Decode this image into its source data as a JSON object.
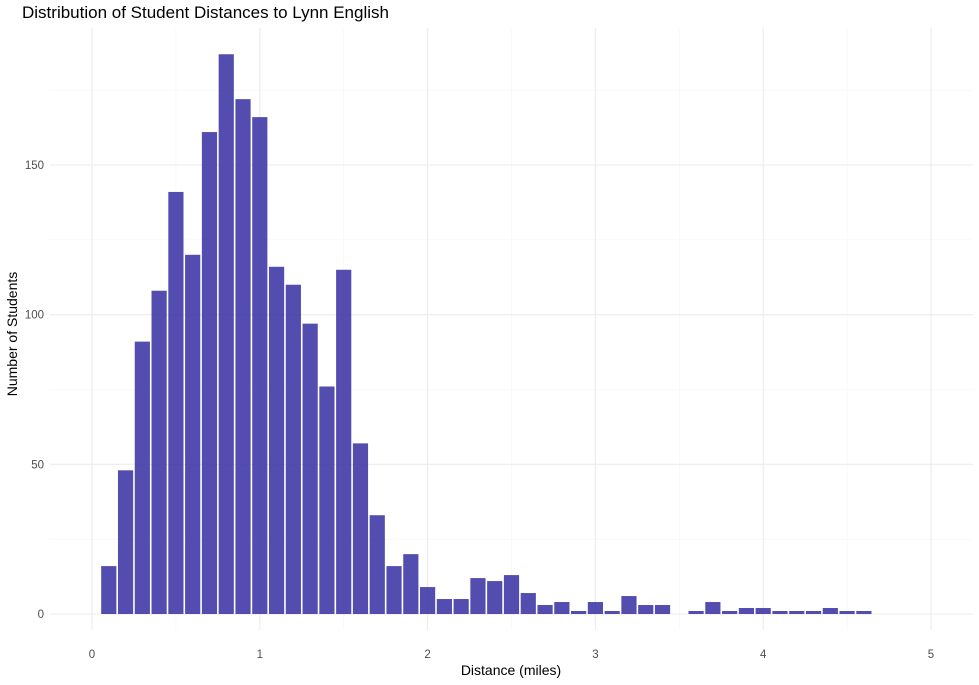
{
  "chart_data": {
    "type": "bar",
    "title": "Distribution of Student Distances to Lynn English",
    "xlabel": "Distance (miles)",
    "ylabel": "Number of Students",
    "xlim": [
      0,
      5
    ],
    "ylim": [
      0,
      190
    ],
    "xticks": [
      "0",
      "1",
      "2",
      "3",
      "4",
      "5"
    ],
    "yticks": [
      "0",
      "50",
      "100",
      "150"
    ],
    "grid": true,
    "bar_color": "#3f3aa6",
    "bin_width": 0.1,
    "x": [
      0.1,
      0.2,
      0.3,
      0.4,
      0.5,
      0.6,
      0.7,
      0.8,
      0.9,
      1.0,
      1.1,
      1.2,
      1.3,
      1.4,
      1.5,
      1.6,
      1.7,
      1.8,
      1.9,
      2.0,
      2.1,
      2.2,
      2.3,
      2.4,
      2.5,
      2.6,
      2.7,
      2.8,
      2.9,
      3.0,
      3.1,
      3.2,
      3.3,
      3.4,
      3.5,
      3.6,
      3.7,
      3.8,
      3.9,
      4.0,
      4.1,
      4.2,
      4.3,
      4.4,
      4.5,
      4.6
    ],
    "values": [
      16,
      48,
      91,
      108,
      141,
      120,
      161,
      187,
      172,
      166,
      116,
      110,
      97,
      76,
      115,
      57,
      33,
      16,
      20,
      9,
      5,
      5,
      12,
      11,
      13,
      7,
      3,
      4,
      1,
      4,
      1,
      6,
      3,
      3,
      0,
      1,
      4,
      1,
      2,
      2,
      1,
      1,
      1,
      2,
      1,
      1
    ]
  }
}
